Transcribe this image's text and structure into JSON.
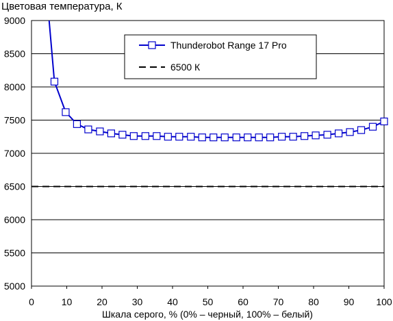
{
  "chart_data": {
    "type": "line",
    "title": "Цветовая температура, К",
    "xlabel": "Шкала серого, % (0% – черный, 100% – белый)",
    "ylabel": "",
    "xlim": [
      0,
      100
    ],
    "ylim": [
      5000,
      9000
    ],
    "x_ticks": [
      0,
      10,
      20,
      30,
      40,
      50,
      60,
      70,
      80,
      90,
      100
    ],
    "y_ticks": [
      5000,
      5500,
      6000,
      6500,
      7000,
      7500,
      8000,
      8500,
      9000
    ],
    "grid": "horizontal",
    "legend_position": "top-center",
    "series": [
      {
        "name": "Thunderobot Range 17 Pro",
        "color": "#0000cc",
        "marker": "square",
        "x": [
          5,
          6.5,
          9.7,
          12.9,
          16.1,
          19.4,
          22.6,
          25.8,
          29.0,
          32.3,
          35.5,
          38.7,
          41.9,
          45.2,
          48.4,
          51.6,
          54.8,
          58.1,
          61.3,
          64.5,
          67.7,
          71.0,
          74.2,
          77.4,
          80.6,
          83.9,
          87.1,
          90.3,
          93.5,
          96.8,
          100
        ],
        "values": [
          9000,
          8080,
          7620,
          7440,
          7360,
          7330,
          7300,
          7280,
          7260,
          7260,
          7260,
          7250,
          7250,
          7250,
          7240,
          7240,
          7240,
          7240,
          7240,
          7240,
          7240,
          7250,
          7250,
          7260,
          7270,
          7280,
          7300,
          7320,
          7350,
          7400,
          7480
        ],
        "marker_from_index": 1
      },
      {
        "name": "6500 К",
        "color": "#000000",
        "style": "dashed",
        "x": [
          0,
          100
        ],
        "values": [
          6500,
          6500
        ]
      }
    ]
  }
}
